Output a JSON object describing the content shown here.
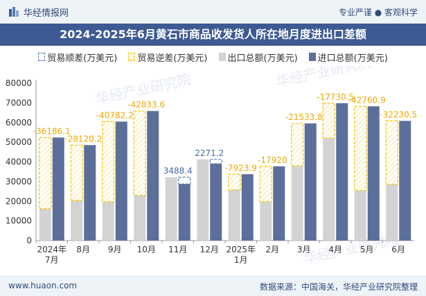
{
  "header": {
    "brand": "华经情报网",
    "slogan": "专业严谨 ● 客观科学"
  },
  "title": "2024-2025年6月黄石市商品收发货人所在地月度进出口差额",
  "legend": {
    "surplus": "贸易顺差(万美元)",
    "deficit": "贸易逆差(万美元)",
    "export": "出口总额(万美元)",
    "import": "进口总额(万美元)"
  },
  "watermark": "华经产业研究院",
  "footer": {
    "website": "www.huaon.com",
    "source": "数据来源：中国海关，华经产业研究院整理"
  },
  "colors": {
    "export": "#d3d3d3",
    "import": "#5c6f9a",
    "surplus": "#5a7ab0",
    "deficit": "#f5c400",
    "label_deficit": "#f0a800",
    "label_surplus": "#4a6aa0"
  },
  "chart_data": {
    "type": "bar",
    "categories": [
      "2024年\n7月",
      "8月",
      "9月",
      "10月",
      "11月",
      "12月",
      "2025年\n1月",
      "2月",
      "3月",
      "4月",
      "5月",
      "6月"
    ],
    "series": [
      {
        "name": "出口总额(万美元)",
        "values": [
          16200,
          20400,
          19700,
          23000,
          32200,
          41300,
          25800,
          19800,
          38000,
          52100,
          25500,
          28600
        ]
      },
      {
        "name": "进口总额(万美元)",
        "values": [
          52386.1,
          48520.2,
          60482.2,
          65833.6,
          28711.6,
          39028.8,
          33723.9,
          37720,
          59533.8,
          69830.5,
          68260.9,
          60830.5
        ]
      }
    ],
    "balance": {
      "values": [
        -36186.1,
        -28120.2,
        -40782.2,
        -42833.6,
        3488.4,
        2271.2,
        -7923.9,
        -17920,
        -21533.8,
        -17730.5,
        -42760.9,
        -32230.5
      ],
      "labels": [
        "-36186.1",
        "-28120.2",
        "-40782.2",
        "-42833.6",
        "3488.4",
        "2271.2",
        "-7923.9",
        "-17920",
        "-21533.8",
        "-17730.5",
        "-42760.9",
        "-32230.5"
      ]
    },
    "y_ticks": [
      "0",
      "10000",
      "20000",
      "30000",
      "40000",
      "50000",
      "60000",
      "70000",
      "80000"
    ],
    "ylim": [
      0,
      80000
    ],
    "grid": false
  }
}
